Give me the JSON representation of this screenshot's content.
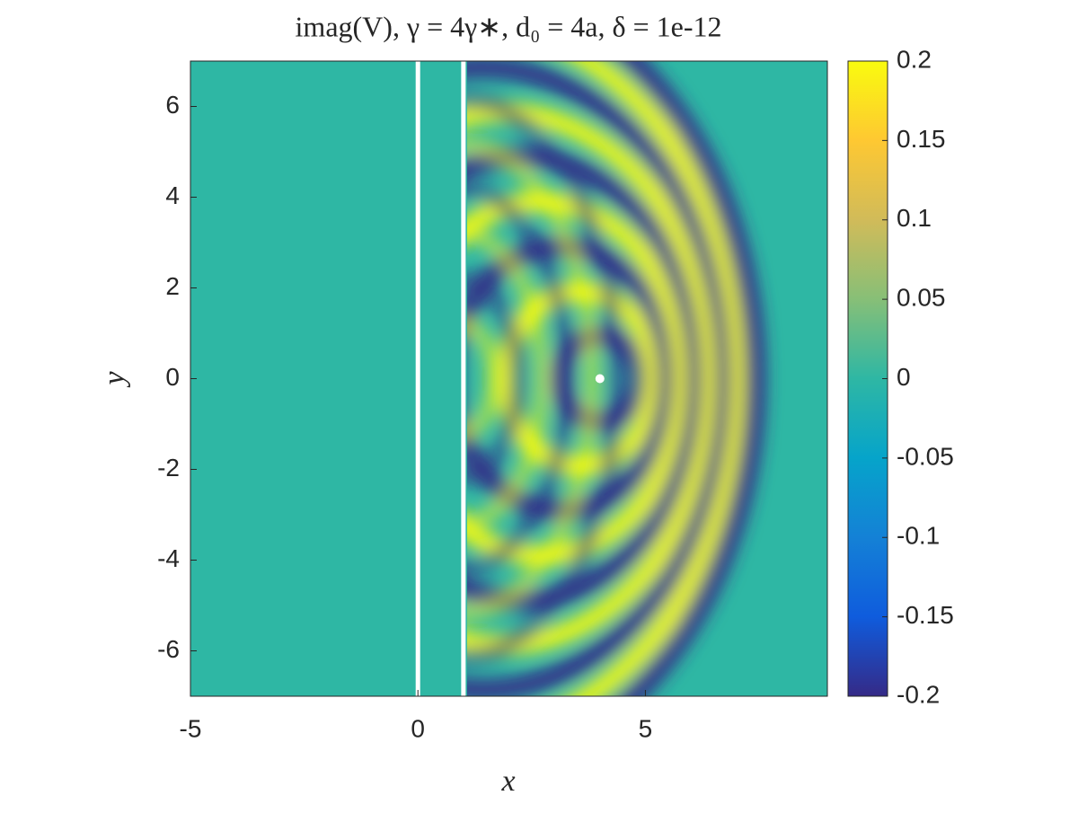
{
  "chart_data": {
    "type": "heatmap",
    "title": "imag(V), γ = 4γ∗, d₀ = 4a, δ = 1e-12",
    "x_label": "x",
    "y_label": "y",
    "xlim": [
      -5,
      9
    ],
    "ylim": [
      -7,
      7
    ],
    "xticks": [
      -5,
      0,
      5
    ],
    "yticks": [
      -6,
      -4,
      -2,
      0,
      2,
      4,
      6
    ],
    "clim": [
      -0.2,
      0.2
    ],
    "cticks": [
      -0.2,
      -0.15,
      -0.1,
      -0.05,
      0,
      0.05,
      0.1,
      0.15,
      0.2
    ],
    "colormap": [
      "#352a87",
      "#0f5cdd",
      "#1481d6",
      "#06a4ca",
      "#2eb7a4",
      "#87bf77",
      "#d1bb59",
      "#fec832",
      "#f9fb0e"
    ],
    "vertical_lines": [
      0,
      1
    ],
    "line_color": "#ffffff",
    "marker": {
      "x": 4,
      "y": 0,
      "color": "#ffffff"
    }
  }
}
